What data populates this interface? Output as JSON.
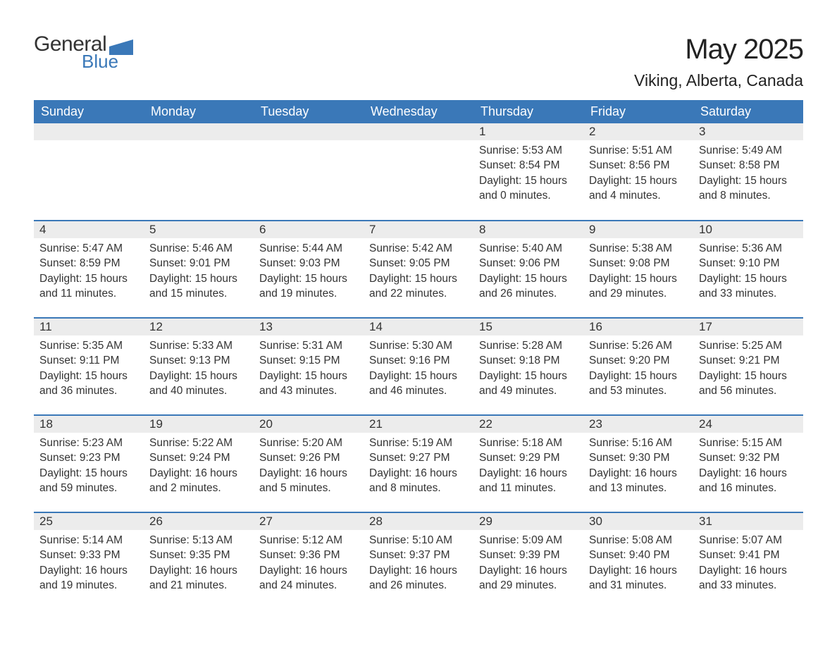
{
  "logo": {
    "word1": "General",
    "word2": "Blue"
  },
  "title": "May 2025",
  "location": "Viking, Alberta, Canada",
  "colors": {
    "header_bg": "#3a78b8",
    "header_text": "#ffffff",
    "daynum_bg": "#ececec",
    "row_border": "#3a78b8",
    "text": "#333333",
    "logo_blue": "#3a78b8"
  },
  "font": {
    "family": "Arial",
    "th_size": 18,
    "title_size": 40,
    "loc_size": 23,
    "cell_size": 15.5
  },
  "day_headers": [
    "Sunday",
    "Monday",
    "Tuesday",
    "Wednesday",
    "Thursday",
    "Friday",
    "Saturday"
  ],
  "weeks": [
    [
      null,
      null,
      null,
      null,
      {
        "n": "1",
        "sr": "Sunrise: 5:53 AM",
        "ss": "Sunset: 8:54 PM",
        "d1": "Daylight: 15 hours",
        "d2": "and 0 minutes."
      },
      {
        "n": "2",
        "sr": "Sunrise: 5:51 AM",
        "ss": "Sunset: 8:56 PM",
        "d1": "Daylight: 15 hours",
        "d2": "and 4 minutes."
      },
      {
        "n": "3",
        "sr": "Sunrise: 5:49 AM",
        "ss": "Sunset: 8:58 PM",
        "d1": "Daylight: 15 hours",
        "d2": "and 8 minutes."
      }
    ],
    [
      {
        "n": "4",
        "sr": "Sunrise: 5:47 AM",
        "ss": "Sunset: 8:59 PM",
        "d1": "Daylight: 15 hours",
        "d2": "and 11 minutes."
      },
      {
        "n": "5",
        "sr": "Sunrise: 5:46 AM",
        "ss": "Sunset: 9:01 PM",
        "d1": "Daylight: 15 hours",
        "d2": "and 15 minutes."
      },
      {
        "n": "6",
        "sr": "Sunrise: 5:44 AM",
        "ss": "Sunset: 9:03 PM",
        "d1": "Daylight: 15 hours",
        "d2": "and 19 minutes."
      },
      {
        "n": "7",
        "sr": "Sunrise: 5:42 AM",
        "ss": "Sunset: 9:05 PM",
        "d1": "Daylight: 15 hours",
        "d2": "and 22 minutes."
      },
      {
        "n": "8",
        "sr": "Sunrise: 5:40 AM",
        "ss": "Sunset: 9:06 PM",
        "d1": "Daylight: 15 hours",
        "d2": "and 26 minutes."
      },
      {
        "n": "9",
        "sr": "Sunrise: 5:38 AM",
        "ss": "Sunset: 9:08 PM",
        "d1": "Daylight: 15 hours",
        "d2": "and 29 minutes."
      },
      {
        "n": "10",
        "sr": "Sunrise: 5:36 AM",
        "ss": "Sunset: 9:10 PM",
        "d1": "Daylight: 15 hours",
        "d2": "and 33 minutes."
      }
    ],
    [
      {
        "n": "11",
        "sr": "Sunrise: 5:35 AM",
        "ss": "Sunset: 9:11 PM",
        "d1": "Daylight: 15 hours",
        "d2": "and 36 minutes."
      },
      {
        "n": "12",
        "sr": "Sunrise: 5:33 AM",
        "ss": "Sunset: 9:13 PM",
        "d1": "Daylight: 15 hours",
        "d2": "and 40 minutes."
      },
      {
        "n": "13",
        "sr": "Sunrise: 5:31 AM",
        "ss": "Sunset: 9:15 PM",
        "d1": "Daylight: 15 hours",
        "d2": "and 43 minutes."
      },
      {
        "n": "14",
        "sr": "Sunrise: 5:30 AM",
        "ss": "Sunset: 9:16 PM",
        "d1": "Daylight: 15 hours",
        "d2": "and 46 minutes."
      },
      {
        "n": "15",
        "sr": "Sunrise: 5:28 AM",
        "ss": "Sunset: 9:18 PM",
        "d1": "Daylight: 15 hours",
        "d2": "and 49 minutes."
      },
      {
        "n": "16",
        "sr": "Sunrise: 5:26 AM",
        "ss": "Sunset: 9:20 PM",
        "d1": "Daylight: 15 hours",
        "d2": "and 53 minutes."
      },
      {
        "n": "17",
        "sr": "Sunrise: 5:25 AM",
        "ss": "Sunset: 9:21 PM",
        "d1": "Daylight: 15 hours",
        "d2": "and 56 minutes."
      }
    ],
    [
      {
        "n": "18",
        "sr": "Sunrise: 5:23 AM",
        "ss": "Sunset: 9:23 PM",
        "d1": "Daylight: 15 hours",
        "d2": "and 59 minutes."
      },
      {
        "n": "19",
        "sr": "Sunrise: 5:22 AM",
        "ss": "Sunset: 9:24 PM",
        "d1": "Daylight: 16 hours",
        "d2": "and 2 minutes."
      },
      {
        "n": "20",
        "sr": "Sunrise: 5:20 AM",
        "ss": "Sunset: 9:26 PM",
        "d1": "Daylight: 16 hours",
        "d2": "and 5 minutes."
      },
      {
        "n": "21",
        "sr": "Sunrise: 5:19 AM",
        "ss": "Sunset: 9:27 PM",
        "d1": "Daylight: 16 hours",
        "d2": "and 8 minutes."
      },
      {
        "n": "22",
        "sr": "Sunrise: 5:18 AM",
        "ss": "Sunset: 9:29 PM",
        "d1": "Daylight: 16 hours",
        "d2": "and 11 minutes."
      },
      {
        "n": "23",
        "sr": "Sunrise: 5:16 AM",
        "ss": "Sunset: 9:30 PM",
        "d1": "Daylight: 16 hours",
        "d2": "and 13 minutes."
      },
      {
        "n": "24",
        "sr": "Sunrise: 5:15 AM",
        "ss": "Sunset: 9:32 PM",
        "d1": "Daylight: 16 hours",
        "d2": "and 16 minutes."
      }
    ],
    [
      {
        "n": "25",
        "sr": "Sunrise: 5:14 AM",
        "ss": "Sunset: 9:33 PM",
        "d1": "Daylight: 16 hours",
        "d2": "and 19 minutes."
      },
      {
        "n": "26",
        "sr": "Sunrise: 5:13 AM",
        "ss": "Sunset: 9:35 PM",
        "d1": "Daylight: 16 hours",
        "d2": "and 21 minutes."
      },
      {
        "n": "27",
        "sr": "Sunrise: 5:12 AM",
        "ss": "Sunset: 9:36 PM",
        "d1": "Daylight: 16 hours",
        "d2": "and 24 minutes."
      },
      {
        "n": "28",
        "sr": "Sunrise: 5:10 AM",
        "ss": "Sunset: 9:37 PM",
        "d1": "Daylight: 16 hours",
        "d2": "and 26 minutes."
      },
      {
        "n": "29",
        "sr": "Sunrise: 5:09 AM",
        "ss": "Sunset: 9:39 PM",
        "d1": "Daylight: 16 hours",
        "d2": "and 29 minutes."
      },
      {
        "n": "30",
        "sr": "Sunrise: 5:08 AM",
        "ss": "Sunset: 9:40 PM",
        "d1": "Daylight: 16 hours",
        "d2": "and 31 minutes."
      },
      {
        "n": "31",
        "sr": "Sunrise: 5:07 AM",
        "ss": "Sunset: 9:41 PM",
        "d1": "Daylight: 16 hours",
        "d2": "and 33 minutes."
      }
    ]
  ]
}
